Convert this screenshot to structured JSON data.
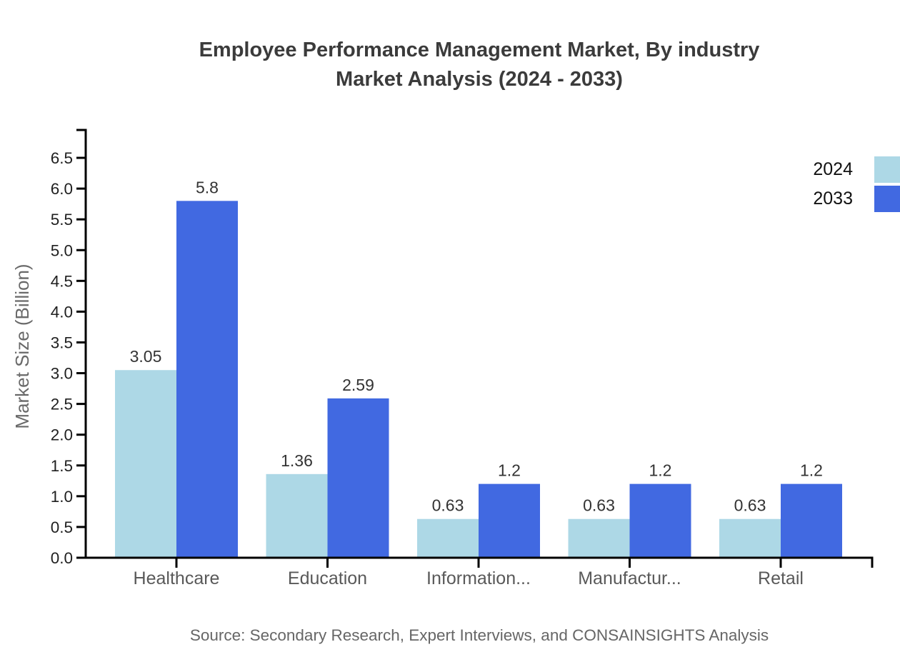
{
  "title": {
    "line1": "Employee Performance Management Market, By industry",
    "line2": "Market Analysis (2024 - 2033)"
  },
  "source": "Source: Secondary Research, Expert Interviews, and CONSAINSIGHTS Analysis",
  "legend": [
    {
      "label": "2024",
      "color": "#ADD8E6"
    },
    {
      "label": "2033",
      "color": "#4169E1"
    }
  ],
  "chart_data": {
    "type": "bar",
    "title": "Employee Performance Management Market, By industry Market Analysis (2024 - 2033)",
    "categories": [
      "Healthcare",
      "Education",
      "Information...",
      "Manufactur...",
      "Retail"
    ],
    "series": [
      {
        "name": "2024",
        "color": "#ADD8E6",
        "values": [
          3.05,
          1.36,
          0.63,
          0.63,
          0.63
        ],
        "labels": [
          "3.05",
          "1.36",
          "0.63",
          "0.63",
          "0.63"
        ]
      },
      {
        "name": "2033",
        "color": "#4169E1",
        "values": [
          5.8,
          2.59,
          1.2,
          1.2,
          1.2
        ],
        "labels": [
          "5.8",
          "2.59",
          "1.2",
          "1.2",
          "1.2"
        ]
      }
    ],
    "xlabel": "",
    "ylabel": "Market Size (Billion)",
    "ylim": [
      0,
      6.5
    ],
    "yticks": [
      0,
      0.5,
      1,
      1.5,
      2,
      2.5,
      3,
      3.5,
      4,
      4.5,
      5,
      5.5,
      6,
      6.5
    ],
    "grid": false,
    "legend_position": "top-right"
  },
  "colors": {
    "axis": "#000000",
    "title": "#3b3b3b",
    "y_tick_label": "#1f1f1f",
    "category_label": "#595959",
    "value_label": "#333333",
    "muted_text": "#666666"
  }
}
